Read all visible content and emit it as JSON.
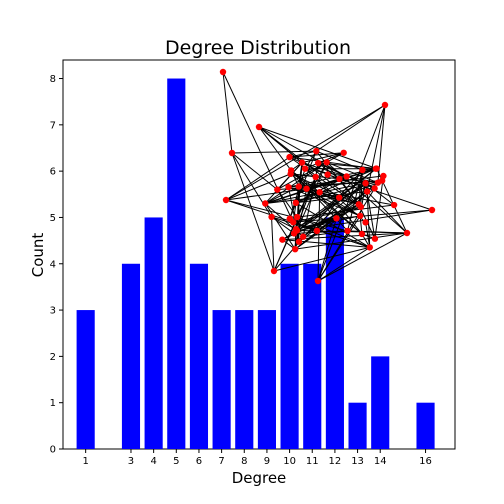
{
  "chart_data": {
    "type": "bar",
    "title": "Degree Distribution",
    "xlabel": "Degree",
    "ylabel": "Count",
    "x": [
      1,
      3,
      4,
      5,
      6,
      7,
      8,
      9,
      10,
      11,
      12,
      13,
      14,
      16
    ],
    "values": [
      3,
      4,
      5,
      8,
      4,
      3,
      3,
      3,
      4,
      4,
      5,
      1,
      2,
      1
    ],
    "xlim": [
      0,
      17.3
    ],
    "ylim": [
      0,
      8.4
    ],
    "yticks": [
      0,
      1,
      2,
      3,
      4,
      5,
      6,
      7,
      8
    ],
    "xticks": [
      1,
      3,
      4,
      5,
      6,
      7,
      8,
      9,
      10,
      11,
      12,
      13,
      14,
      16
    ],
    "bar_color": "#0000ff",
    "grid": false,
    "legend": "none",
    "inset": {
      "type": "network-graph",
      "description_node_color": "#ff0000",
      "edge_color": "#000000"
    }
  }
}
